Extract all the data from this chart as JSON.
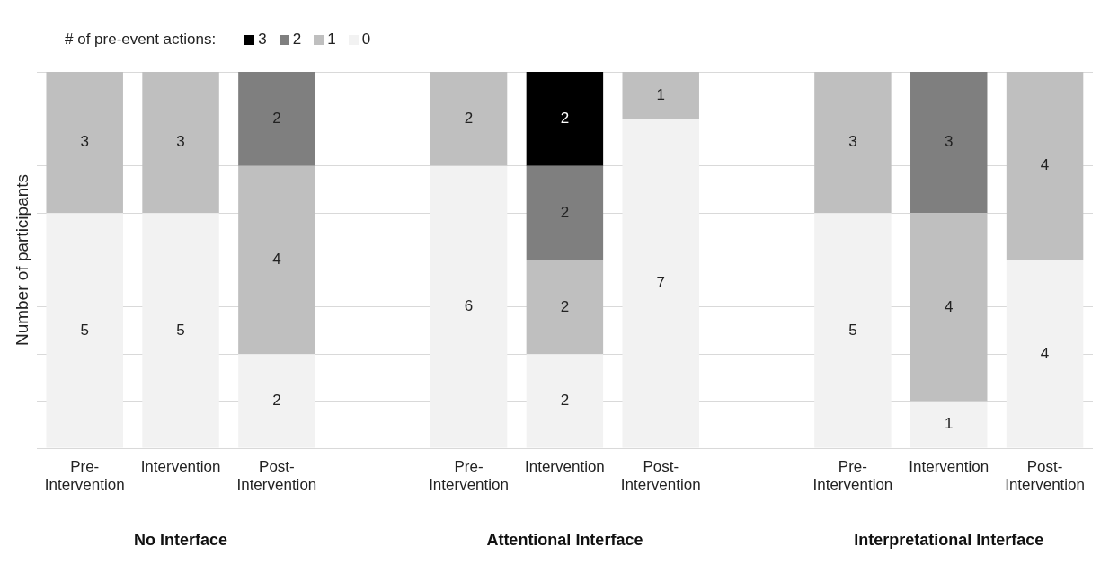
{
  "chart_data": {
    "type": "bar",
    "stacked": true,
    "ylabel": "Number of participants",
    "legend_title": "# of pre-event actions:",
    "legend": "top left",
    "grid": "y",
    "tick_labels": "x",
    "data_labels": true,
    "categories": [
      "Pre-Intervention",
      "Intervention",
      "Post-Intervention",
      null,
      "Pre-Intervention",
      "Intervention",
      "Post-Intervention",
      null,
      "Pre-Intervention",
      "Intervention",
      "Post-Intervention"
    ],
    "ylim": [
      0,
      8
    ],
    "yticks": [
      {
        "value": 0,
        "label": null
      },
      {
        "value": 1,
        "label": null
      },
      {
        "value": 2,
        "label": null
      },
      {
        "value": 3,
        "label": null
      },
      {
        "value": 4,
        "label": null
      },
      {
        "value": 5,
        "label": null
      },
      {
        "value": 6,
        "label": null
      },
      {
        "value": 7,
        "label": null
      },
      {
        "value": 8,
        "label": null
      }
    ],
    "series": [
      {
        "name": "0",
        "color": "#f2f2f2",
        "values": [
          5,
          5,
          2,
          null,
          6,
          2,
          7,
          null,
          5,
          1,
          4
        ]
      },
      {
        "name": "1",
        "color": "#bfbfbf",
        "values": [
          3,
          3,
          4,
          null,
          2,
          2,
          1,
          null,
          3,
          4,
          4
        ]
      },
      {
        "name": "2",
        "color": "#7f7f7f",
        "values": [
          null,
          null,
          2,
          null,
          null,
          2,
          null,
          null,
          null,
          3,
          null
        ]
      },
      {
        "name": "3",
        "color": "#000000",
        "values": [
          null,
          null,
          null,
          null,
          null,
          2,
          null,
          null,
          null,
          null,
          null
        ]
      }
    ],
    "annotations": [
      "No Interface",
      "Attentional Interface",
      "Interpretational Interface"
    ]
  }
}
